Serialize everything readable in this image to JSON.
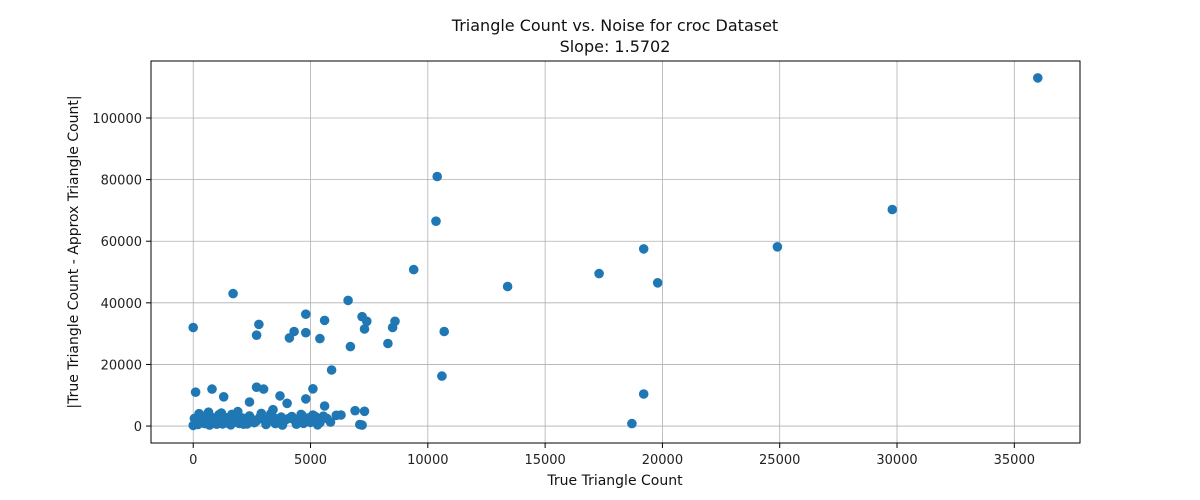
{
  "chart_data": {
    "type": "scatter",
    "title": "Triangle Count vs. Noise for croc Dataset",
    "subtitle": "Slope: 1.5702",
    "xlabel": "True Triangle Count",
    "ylabel": "|True Triangle Count - Approx Triangle Count|",
    "xlim": [
      -1800,
      37800
    ],
    "ylim": [
      -5500,
      118500
    ],
    "xticks": [
      0,
      5000,
      10000,
      15000,
      20000,
      25000,
      30000,
      35000
    ],
    "yticks": [
      0,
      20000,
      40000,
      60000,
      80000,
      100000
    ],
    "grid": true,
    "color": "#1f77b4",
    "series": [
      {
        "x": [
          36000,
          29800,
          24900,
          19200,
          19800,
          17300,
          13400,
          10400,
          10350,
          9400,
          19200,
          18700,
          10700,
          10600,
          6600,
          7200,
          7300,
          7400,
          8600,
          8500,
          8300,
          6700,
          4800,
          5600,
          4800,
          5400,
          4300,
          4100,
          2800,
          2700,
          1700,
          5900,
          0,
          100,
          800,
          3000,
          2700,
          5100,
          3700,
          1300,
          4800,
          4000,
          2400,
          5600,
          6900,
          7300,
          6100,
          7100,
          7200,
          6300,
          50,
          150,
          300,
          450,
          600,
          750,
          900,
          1050,
          1200,
          1350,
          1500,
          1650,
          1800,
          1950,
          2100,
          2250,
          2400,
          2550,
          2700,
          2850,
          3000,
          3150,
          3300,
          3450,
          3600,
          3750,
          3900,
          4050,
          4200,
          4350,
          4500,
          4650,
          4800,
          4950,
          5100,
          5250,
          5400,
          5550,
          5700,
          5850,
          200,
          500,
          700,
          1000,
          1400,
          1600,
          2000,
          2300,
          2600,
          3100,
          3500,
          3800,
          4400,
          4700,
          5000,
          5300,
          0,
          250,
          650,
          1100,
          1900,
          2900,
          3400,
          4600,
          5200,
          350,
          850,
          1250,
          1750,
          2150
        ],
        "y": [
          113000,
          70300,
          58200,
          57500,
          46500,
          49500,
          45300,
          81000,
          66500,
          50800,
          10400,
          800,
          30700,
          16200,
          40800,
          35500,
          31500,
          34000,
          34000,
          32000,
          26800,
          25800,
          36300,
          34300,
          30300,
          28400,
          30700,
          28600,
          33000,
          29500,
          43000,
          18200,
          32000,
          11000,
          12000,
          12000,
          12600,
          12100,
          9800,
          9500,
          8800,
          7400,
          7800,
          6500,
          5000,
          4800,
          3500,
          500,
          300,
          3600,
          2500,
          1800,
          3500,
          2200,
          1500,
          3000,
          2000,
          1200,
          4200,
          2800,
          1600,
          3800,
          2100,
          900,
          2600,
          1400,
          3300,
          2000,
          1700,
          3000,
          2200,
          1500,
          3900,
          2600,
          1200,
          2900,
          1800,
          2400,
          3100,
          1600,
          2300,
          3400,
          1400,
          2700,
          3600,
          1900,
          1100,
          3200,
          2500,
          1300,
          500,
          800,
          300,
          600,
          1000,
          400,
          900,
          700,
          1100,
          500,
          800,
          300,
          600,
          900,
          1200,
          400,
          200,
          4000,
          4500,
          3700,
          4700,
          4100,
          5300,
          3800,
          3100,
          1000,
          1500,
          700,
          1300,
          600
        ]
      }
    ]
  }
}
